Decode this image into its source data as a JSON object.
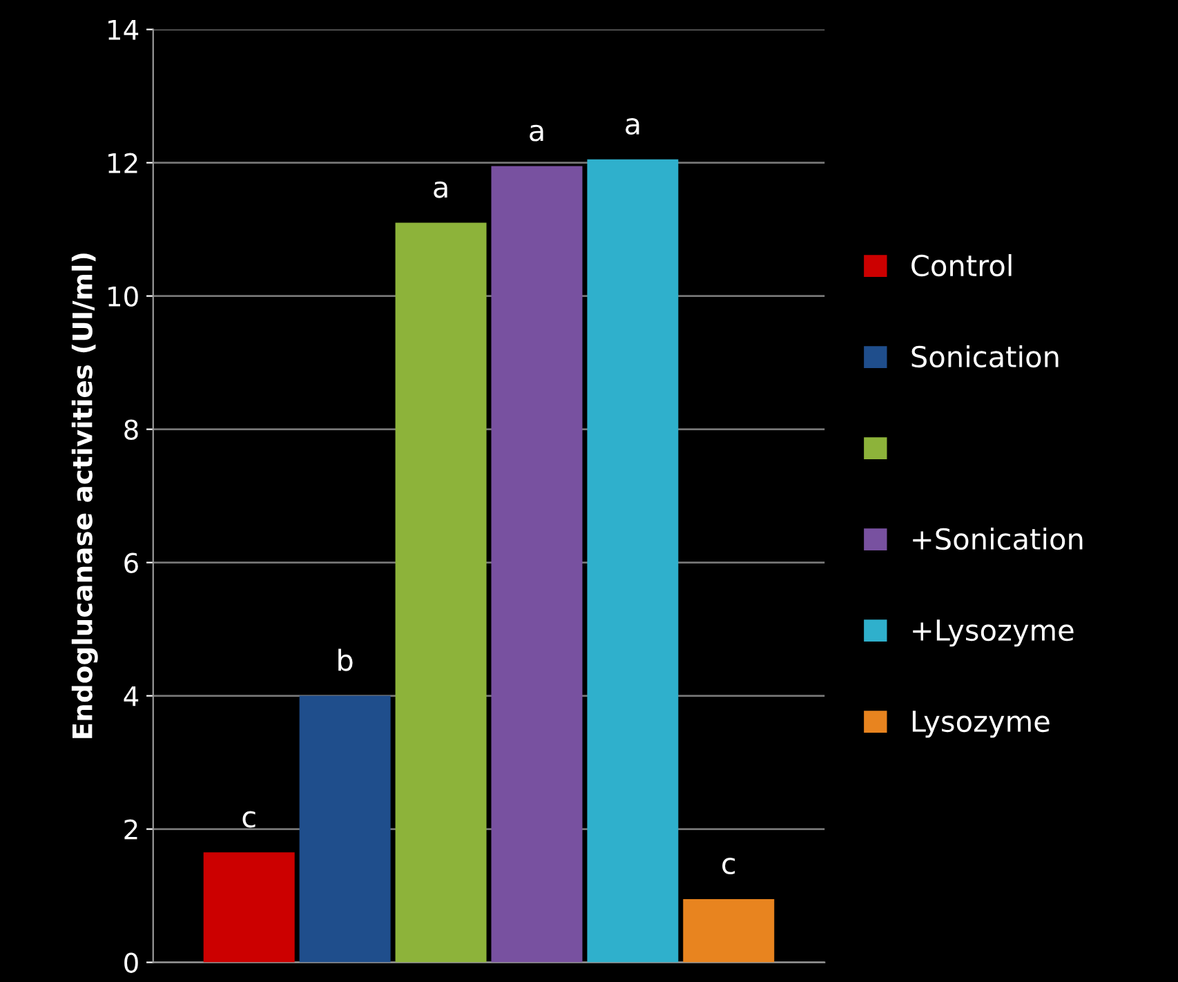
{
  "chart_data": {
    "type": "bar",
    "ylabel": "Endoglucanase activities (UI/ml)",
    "categories": [
      null,
      null,
      null,
      null,
      null,
      null
    ],
    "series": [
      {
        "name": "Control",
        "color": "#cc0000",
        "values": [
          1.65,
          null,
          null,
          null,
          null,
          null
        ]
      },
      {
        "name": "Sonication",
        "color": "#1f4e8c",
        "values": [
          null,
          4.0,
          null,
          null,
          null,
          null
        ]
      },
      {
        "color": "#8db33a",
        "values": [
          null,
          null,
          11.1,
          null,
          null,
          null
        ]
      },
      {
        "name": "+Sonication",
        "color": "#7851a0",
        "values": [
          null,
          null,
          null,
          11.95,
          null,
          null
        ]
      },
      {
        "name": "+Lysozyme",
        "color": "#2fb0cc",
        "values": [
          null,
          null,
          null,
          null,
          12.05,
          null
        ]
      },
      {
        "name": "Lysozyme",
        "color": "#e8841f",
        "values": [
          null,
          null,
          null,
          null,
          null,
          0.95
        ]
      }
    ],
    "ylim": [
      0,
      14
    ],
    "yticks": [
      0,
      2,
      4,
      6,
      8,
      10,
      12,
      14
    ],
    "grid": "y",
    "legend": "right",
    "tick_labels": "y",
    "annotations": [
      {
        "text": "c",
        "y": 1.65
      },
      {
        "text": "b",
        "y": 4.0
      },
      {
        "text": "a",
        "y": 11.1
      },
      {
        "text": "a",
        "y": 11.95
      },
      {
        "text": "a",
        "y": 12.05
      },
      {
        "text": "c",
        "y": 0.95
      }
    ]
  }
}
